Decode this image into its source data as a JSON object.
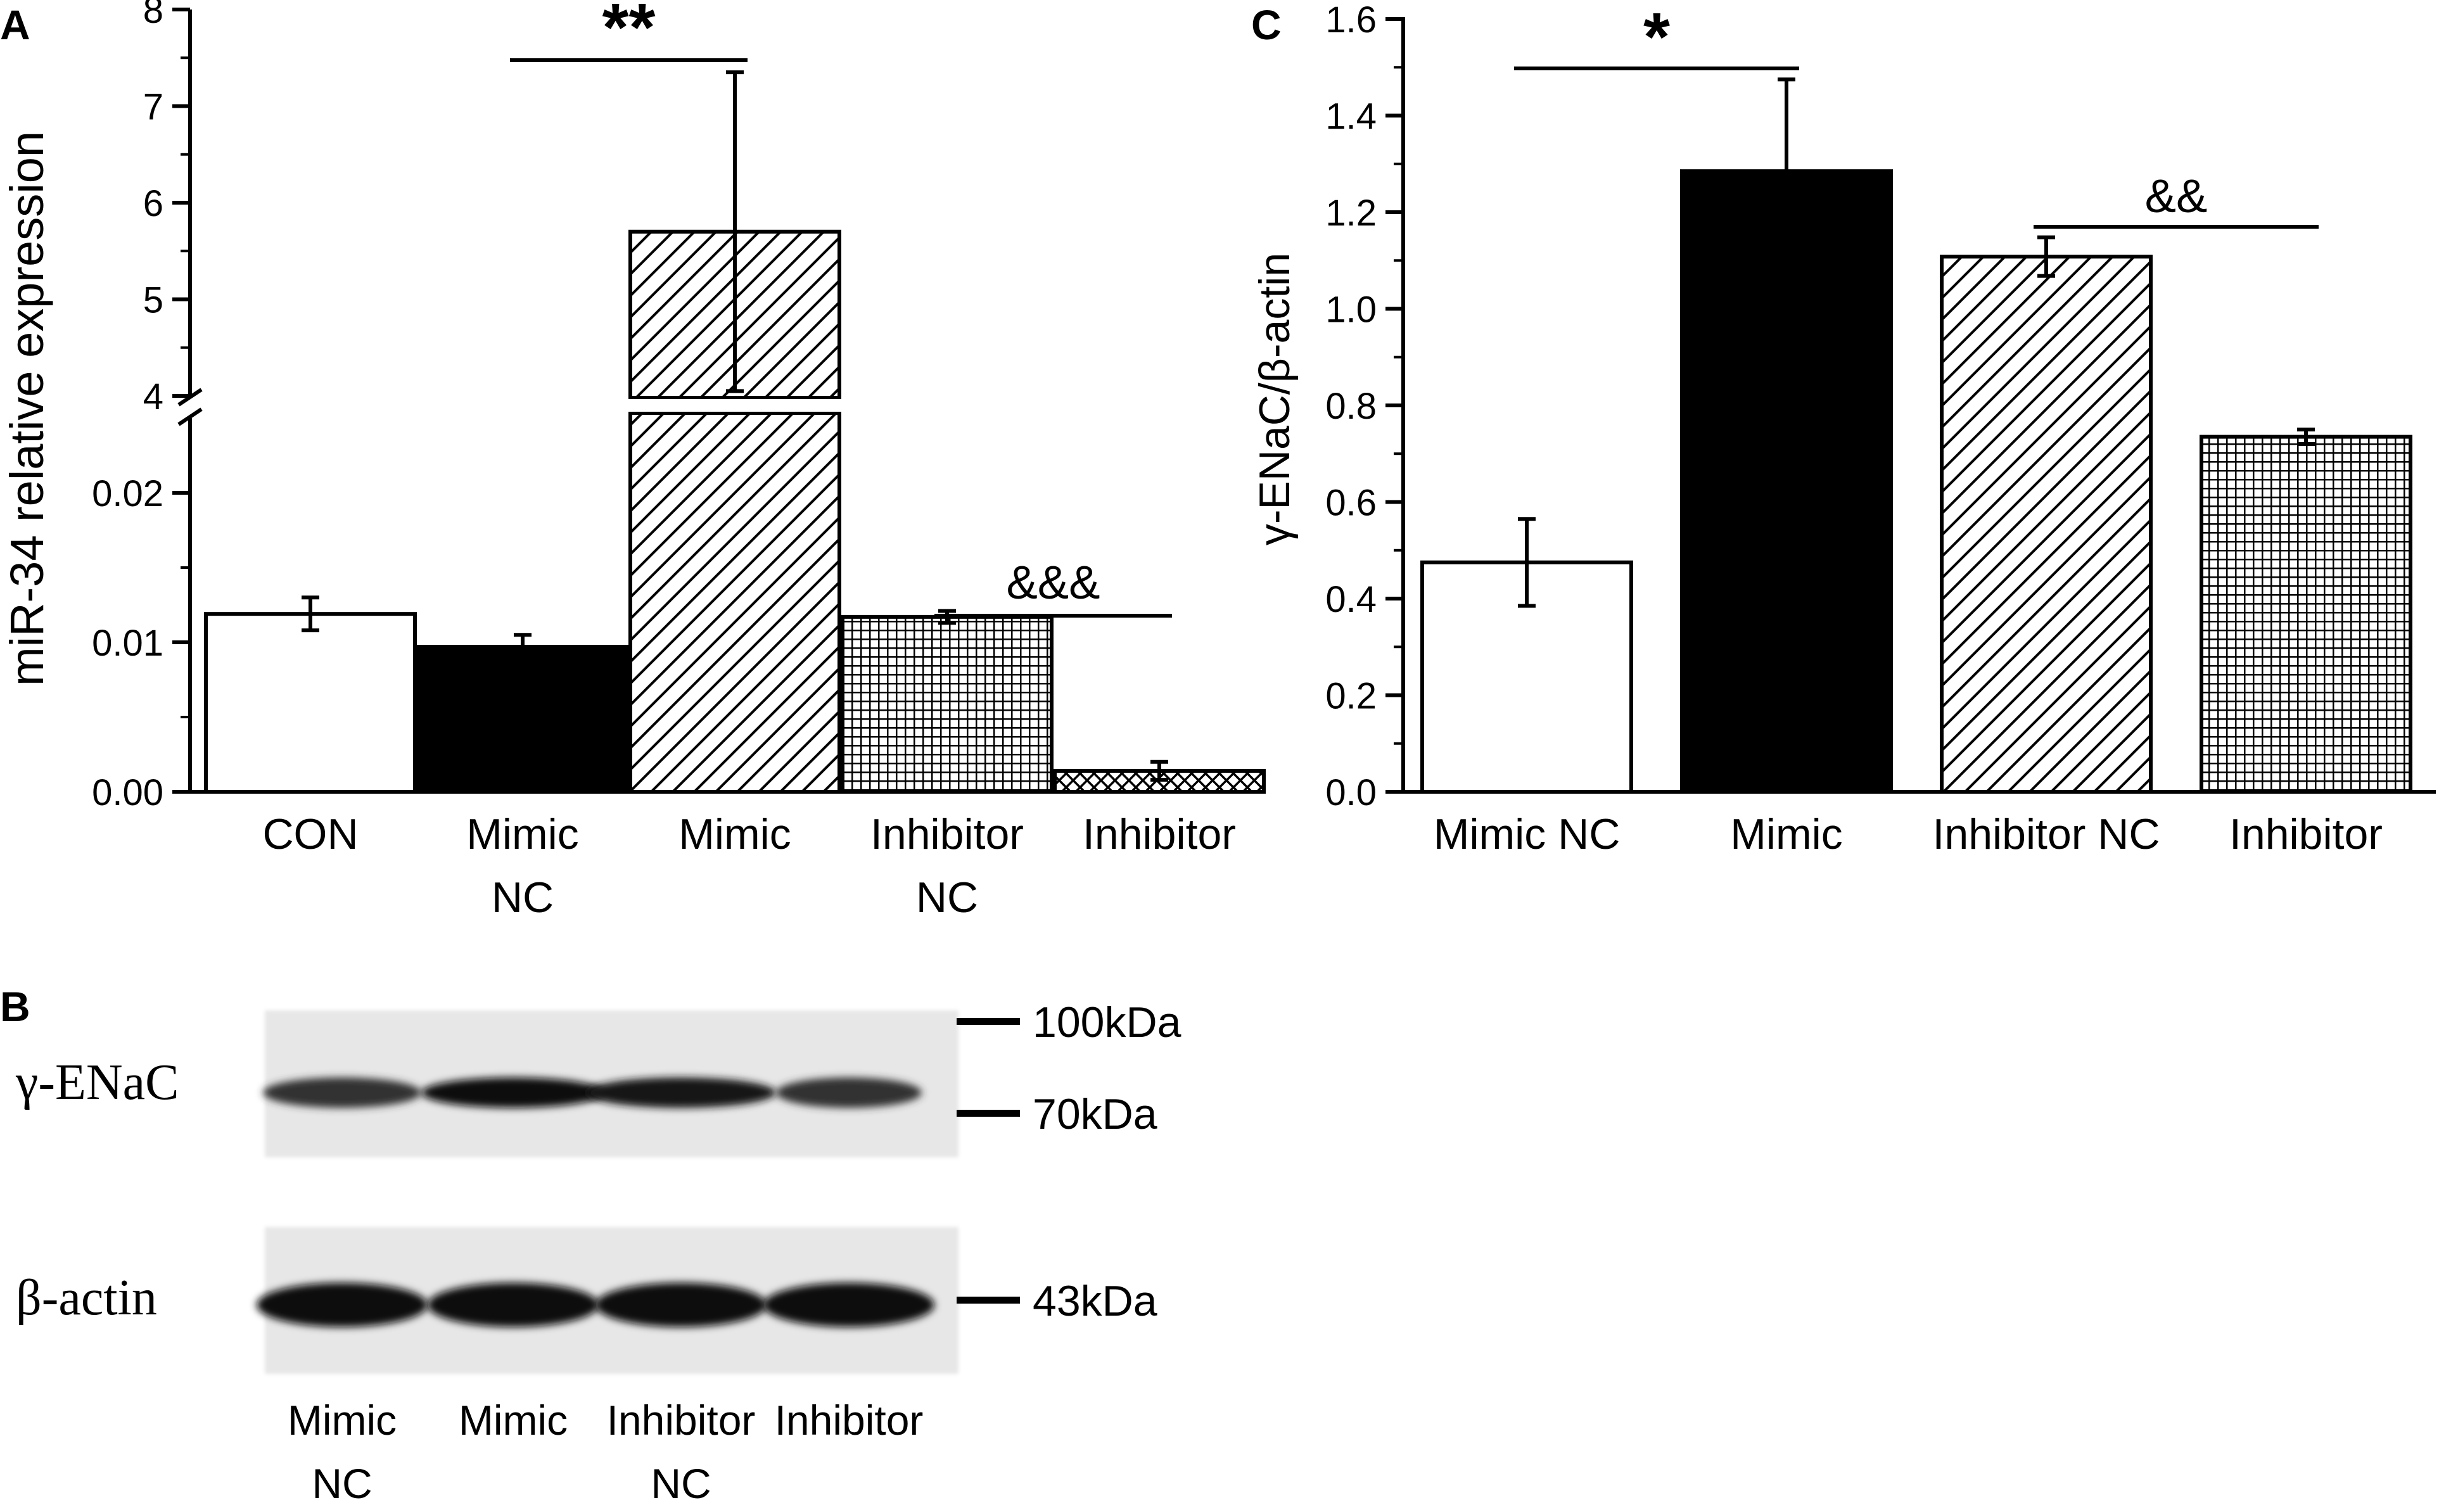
{
  "panels": {
    "A": "A",
    "B": "B",
    "C": "C"
  },
  "chart_data": [
    {
      "panel": "A",
      "type": "bar",
      "ylabel": "miR-34 relative expression",
      "axis_break": {
        "lower_range": [
          0,
          0.025
        ],
        "upper_range": [
          4,
          8
        ]
      },
      "lower_ticks": [
        "0.00",
        "0.01",
        "0.02"
      ],
      "upper_ticks": [
        "4",
        "5",
        "6",
        "7",
        "8"
      ],
      "categories": [
        {
          "line1": "CON",
          "line2": ""
        },
        {
          "line1": "Mimic",
          "line2": "NC"
        },
        {
          "line1": "Mimic",
          "line2": ""
        },
        {
          "line1": "Inhibitor",
          "line2": "NC"
        },
        {
          "line1": "Inhibitor",
          "line2": ""
        }
      ],
      "values": [
        0.0119,
        0.0097,
        5.7,
        0.0117,
        0.0014
      ],
      "errors": [
        0.0011,
        0.0008,
        1.65,
        0.0004,
        0.0006
      ],
      "fills": [
        "white",
        "black",
        "diagonal",
        "grid",
        "crosshatch"
      ],
      "significance": [
        {
          "label": "**",
          "from": 1,
          "to": 2
        },
        {
          "label": "&&&",
          "from": 3,
          "to": 4
        }
      ]
    },
    {
      "panel": "C",
      "type": "bar",
      "ylabel": "γ-ENaC/β-actin",
      "ylim": [
        0,
        1.6
      ],
      "ticks": [
        "0.0",
        "0.2",
        "0.4",
        "0.6",
        "0.8",
        "1.0",
        "1.2",
        "1.4",
        "1.6"
      ],
      "categories": [
        "Mimic NC",
        "Mimic",
        "Inhibitor NC",
        "Inhibitor"
      ],
      "values": [
        0.475,
        1.285,
        1.108,
        0.735
      ],
      "errors": [
        0.09,
        0.19,
        0.04,
        0.015
      ],
      "fills": [
        "white",
        "black",
        "diagonal",
        "grid"
      ],
      "significance": [
        {
          "label": "*",
          "from": 0,
          "to": 1
        },
        {
          "label": "&&",
          "from": 2,
          "to": 3
        }
      ]
    }
  ],
  "blot": {
    "rows": [
      {
        "label": "γ-ENaC",
        "intensity": [
          0.8,
          0.95,
          0.92,
          0.8
        ]
      },
      {
        "label": "β-actin",
        "intensity": [
          0.95,
          0.95,
          0.95,
          0.95
        ]
      }
    ],
    "markers": [
      "100kDa",
      "70kDa",
      "43kDa"
    ],
    "lanes": [
      {
        "line1": "Mimic",
        "line2": "NC"
      },
      {
        "line1": "Mimic",
        "line2": ""
      },
      {
        "line1": "Inhibitor",
        "line2": "NC"
      },
      {
        "line1": "Inhibitor",
        "line2": ""
      }
    ]
  }
}
